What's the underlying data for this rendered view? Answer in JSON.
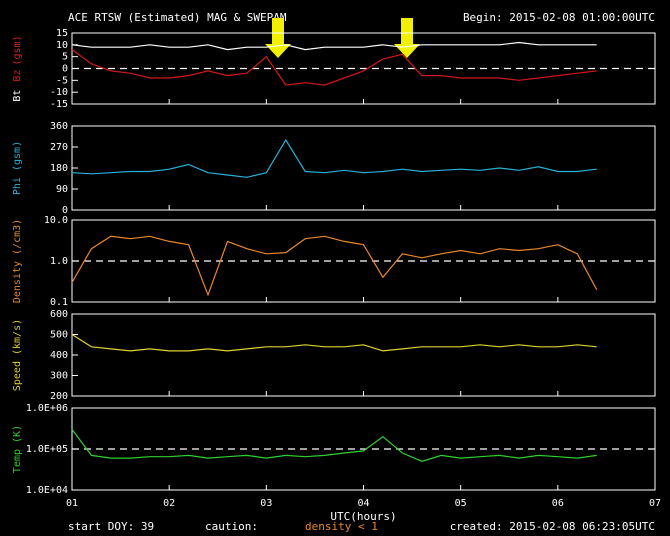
{
  "header": {
    "title": "ACE RTSW (Estimated) MAG & SWEPAM",
    "begin": "Begin: 2015-02-08 01:00:00UTC"
  },
  "footer": {
    "start": "start DOY:  39",
    "caution": "caution:",
    "caution_note": "density < 1",
    "created": "created: 2015-02-08 06:23:05UTC"
  },
  "chart_data": [
    {
      "type": "line",
      "ylabel": "(gsm)",
      "ylabel_color": "#e02020",
      "x": [
        1.0,
        1.2,
        1.4,
        1.6,
        1.8,
        2.0,
        2.2,
        2.4,
        2.6,
        2.8,
        3.0,
        3.2,
        3.4,
        3.6,
        3.8,
        4.0,
        4.2,
        4.4,
        4.6,
        4.8,
        5.0,
        5.2,
        5.4,
        5.6,
        5.8,
        6.0,
        6.2,
        6.4
      ],
      "series": [
        {
          "name": "Bt",
          "color": "#ffffff",
          "values": [
            10,
            9,
            9,
            9,
            10,
            9,
            9,
            10,
            8,
            9,
            9,
            10,
            8,
            9,
            9,
            9,
            10,
            9,
            10,
            10,
            10,
            10,
            10,
            11,
            10,
            10,
            10,
            10
          ]
        },
        {
          "name": "Bz",
          "color": "#d01818",
          "values": [
            8,
            2,
            -1,
            -2,
            -4,
            -4,
            -3,
            -1,
            -3,
            -2,
            5,
            -7,
            -6,
            -7,
            -4,
            -1,
            4,
            6,
            -3,
            -3,
            -4,
            -4,
            -4,
            -5,
            -4,
            -3,
            -2,
            -1
          ]
        }
      ],
      "xlim": [
        1,
        7
      ],
      "ylim": [
        -15,
        15
      ],
      "yticks": [
        -15,
        -10,
        -5,
        0,
        5,
        10,
        15
      ],
      "hline": 0
    },
    {
      "type": "line",
      "ylabel": "Phi (gsm)",
      "x": [
        1.0,
        1.2,
        1.4,
        1.6,
        1.8,
        2.0,
        2.2,
        2.4,
        2.6,
        2.8,
        3.0,
        3.2,
        3.4,
        3.6,
        3.8,
        4.0,
        4.2,
        4.4,
        4.6,
        4.8,
        5.0,
        5.2,
        5.4,
        5.6,
        5.8,
        6.0,
        6.2,
        6.4
      ],
      "color": "#2ab0d8",
      "values": [
        160,
        155,
        160,
        165,
        165,
        175,
        195,
        160,
        150,
        140,
        160,
        300,
        165,
        160,
        170,
        160,
        165,
        175,
        165,
        170,
        175,
        170,
        180,
        170,
        185,
        165,
        165,
        175
      ],
      "xlim": [
        1,
        7
      ],
      "ylim": [
        0,
        360
      ],
      "yticks": [
        0,
        90,
        180,
        270,
        360
      ]
    },
    {
      "type": "line",
      "ylabel": "Density (/cm3)",
      "yscale": "log",
      "x": [
        1.0,
        1.2,
        1.4,
        1.6,
        1.8,
        2.0,
        2.2,
        2.4,
        2.6,
        2.8,
        3.0,
        3.2,
        3.4,
        3.6,
        3.8,
        4.0,
        4.2,
        4.4,
        4.6,
        4.8,
        5.0,
        5.2,
        5.4,
        5.6,
        5.8,
        6.0,
        6.2,
        6.4
      ],
      "color": "#e8882a",
      "values": [
        0.3,
        2,
        4,
        3.5,
        4,
        3,
        2.5,
        0.15,
        3,
        2,
        1.5,
        1.6,
        3.5,
        4,
        3,
        2.5,
        0.4,
        1.5,
        1.2,
        1.5,
        1.8,
        1.5,
        2,
        1.8,
        2,
        2.5,
        1.5,
        0.2
      ],
      "xlim": [
        1,
        7
      ],
      "ylim": [
        0.1,
        10
      ],
      "yticks": [
        0.1,
        {
          "value": 1,
          "label": "1.0"
        },
        {
          "value": 10,
          "label": "10.0"
        }
      ],
      "hline": 1
    },
    {
      "type": "line",
      "ylabel": "Speed (km/s)",
      "x": [
        1.0,
        1.2,
        1.4,
        1.6,
        1.8,
        2.0,
        2.2,
        2.4,
        2.6,
        2.8,
        3.0,
        3.2,
        3.4,
        3.6,
        3.8,
        4.0,
        4.2,
        4.4,
        4.6,
        4.8,
        5.0,
        5.2,
        5.4,
        5.6,
        5.8,
        6.0,
        6.2,
        6.4
      ],
      "color": "#e0d030",
      "values": [
        500,
        440,
        430,
        420,
        430,
        420,
        420,
        430,
        420,
        430,
        440,
        440,
        450,
        440,
        440,
        450,
        420,
        430,
        440,
        440,
        440,
        450,
        440,
        450,
        440,
        440,
        450,
        440
      ],
      "xlim": [
        1,
        7
      ],
      "ylim": [
        200,
        600
      ],
      "yticks": [
        200,
        300,
        400,
        500,
        600
      ]
    },
    {
      "type": "line",
      "ylabel": "Temp (K)",
      "yscale": "log",
      "xlabel": "UTC(hours)",
      "x": [
        1.0,
        1.2,
        1.4,
        1.6,
        1.8,
        2.0,
        2.2,
        2.4,
        2.6,
        2.8,
        3.0,
        3.2,
        3.4,
        3.6,
        3.8,
        4.0,
        4.2,
        4.4,
        4.6,
        4.8,
        5.0,
        5.2,
        5.4,
        5.6,
        5.8,
        6.0,
        6.2,
        6.4
      ],
      "color": "#30d030",
      "values": [
        300000,
        70000,
        60000,
        60000,
        65000,
        65000,
        70000,
        60000,
        65000,
        70000,
        60000,
        70000,
        65000,
        70000,
        80000,
        90000,
        200000,
        80000,
        50000,
        70000,
        60000,
        65000,
        70000,
        60000,
        70000,
        65000,
        60000,
        70000
      ],
      "xlim": [
        1,
        7
      ],
      "ylim": [
        10000,
        1000000
      ],
      "yticks": [
        {
          "value": 10000,
          "label": "1.0E+04"
        },
        {
          "value": 100000,
          "label": "1.0E+05"
        },
        {
          "value": 1000000,
          "label": "1.0E+06"
        }
      ],
      "hline": 100000,
      "xticks": [
        {
          "value": 1,
          "label": "01"
        },
        {
          "value": 2,
          "label": "02"
        },
        {
          "value": 3,
          "label": "03"
        },
        {
          "value": 4,
          "label": "04"
        },
        {
          "value": 5,
          "label": "05"
        },
        {
          "value": 6,
          "label": "06"
        },
        {
          "value": 7,
          "label": "07"
        }
      ]
    }
  ]
}
